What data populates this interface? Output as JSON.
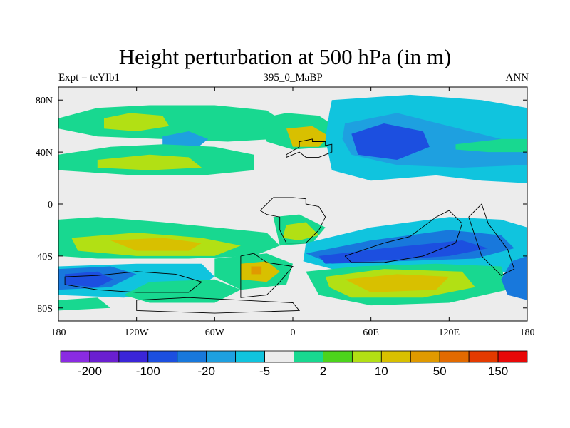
{
  "header": {
    "title": "Height perturbation at 500 hPa (in m)",
    "left": "Expt = teYIb1",
    "center": "395_0_MaBP",
    "right": "ANN"
  },
  "map": {
    "lat_labels": [
      {
        "value": 80,
        "text": "80N"
      },
      {
        "value": 40,
        "text": "40N"
      },
      {
        "value": 0,
        "text": "0"
      },
      {
        "value": -40,
        "text": "40S"
      },
      {
        "value": -80,
        "text": "80S"
      }
    ],
    "lon_labels": [
      {
        "value": -180,
        "text": "180"
      },
      {
        "value": -120,
        "text": "120W"
      },
      {
        "value": -60,
        "text": "60W"
      },
      {
        "value": 0,
        "text": "0"
      },
      {
        "value": 60,
        "text": "60E"
      },
      {
        "value": 120,
        "text": "120E"
      },
      {
        "value": 180,
        "text": "180"
      }
    ],
    "lat_range": [
      -90,
      90
    ],
    "lon_range": [
      -180,
      180
    ]
  },
  "colorbar": {
    "colors": [
      "#8a2be2",
      "#6a1fd0",
      "#3a25d8",
      "#1c4fe0",
      "#1878dc",
      "#1ea0e0",
      "#10c4de",
      "#ececec",
      "#18d890",
      "#4cd41c",
      "#b2e014",
      "#d8c000",
      "#e09a00",
      "#e26a00",
      "#e43a00",
      "#e80808"
    ],
    "labels": [
      {
        "after": 1,
        "text": "-200"
      },
      {
        "after": 3,
        "text": "-100"
      },
      {
        "after": 5,
        "text": "-20"
      },
      {
        "after": 7,
        "text": "-5"
      },
      {
        "after": 9,
        "text": "2"
      },
      {
        "after": 11,
        "text": "10"
      },
      {
        "after": 13,
        "text": "50"
      },
      {
        "after": 15,
        "text": "150"
      }
    ]
  },
  "field": {
    "colors": {
      "neutral": "#ececec",
      "cyan": "#10c4de",
      "lightblue": "#1ea0e0",
      "blue": "#1878dc",
      "darkblue": "#1c4fe0",
      "green": "#18d890",
      "lime": "#4cd41c",
      "yellowgreen": "#b2e014",
      "gold": "#d8c000",
      "orange": "#e09a00",
      "darkorange": "#e26a00"
    },
    "regions": [
      {
        "color": "green",
        "pts": [
          [
            -180,
            66
          ],
          [
            -150,
            74
          ],
          [
            -110,
            76
          ],
          [
            -60,
            76
          ],
          [
            -20,
            72
          ],
          [
            -5,
            62
          ],
          [
            -15,
            50
          ],
          [
            -50,
            48
          ],
          [
            -100,
            50
          ],
          [
            -150,
            52
          ],
          [
            -180,
            58
          ]
        ]
      },
      {
        "color": "yellowgreen",
        "pts": [
          [
            -145,
            66
          ],
          [
            -125,
            70
          ],
          [
            -100,
            68
          ],
          [
            -95,
            60
          ],
          [
            -120,
            56
          ],
          [
            -145,
            58
          ]
        ]
      },
      {
        "color": "lightblue",
        "pts": [
          [
            -100,
            52
          ],
          [
            -80,
            56
          ],
          [
            -65,
            50
          ],
          [
            -75,
            42
          ],
          [
            -100,
            44
          ]
        ]
      },
      {
        "color": "green",
        "pts": [
          [
            -180,
            38
          ],
          [
            -140,
            44
          ],
          [
            -100,
            46
          ],
          [
            -60,
            44
          ],
          [
            -30,
            38
          ],
          [
            -30,
            26
          ],
          [
            -70,
            22
          ],
          [
            -120,
            22
          ],
          [
            -180,
            26
          ]
        ]
      },
      {
        "color": "yellowgreen",
        "pts": [
          [
            -150,
            34
          ],
          [
            -110,
            38
          ],
          [
            -80,
            36
          ],
          [
            -70,
            28
          ],
          [
            -110,
            26
          ],
          [
            -150,
            28
          ]
        ]
      },
      {
        "color": "green",
        "pts": [
          [
            -25,
            66
          ],
          [
            -5,
            70
          ],
          [
            20,
            68
          ],
          [
            35,
            58
          ],
          [
            30,
            44
          ],
          [
            0,
            42
          ],
          [
            -20,
            48
          ]
        ]
      },
      {
        "color": "gold",
        "pts": [
          [
            -5,
            58
          ],
          [
            15,
            60
          ],
          [
            28,
            52
          ],
          [
            20,
            44
          ],
          [
            0,
            44
          ]
        ]
      },
      {
        "color": "cyan",
        "pts": [
          [
            30,
            80
          ],
          [
            90,
            84
          ],
          [
            145,
            80
          ],
          [
            180,
            74
          ],
          [
            180,
            16
          ],
          [
            145,
            18
          ],
          [
            110,
            22
          ],
          [
            60,
            18
          ],
          [
            30,
            26
          ],
          [
            25,
            50
          ],
          [
            28,
            70
          ]
        ]
      },
      {
        "color": "lightblue",
        "pts": [
          [
            40,
            62
          ],
          [
            80,
            70
          ],
          [
            120,
            60
          ],
          [
            160,
            50
          ],
          [
            180,
            48
          ],
          [
            180,
            30
          ],
          [
            130,
            28
          ],
          [
            80,
            30
          ],
          [
            45,
            38
          ],
          [
            38,
            50
          ]
        ]
      },
      {
        "color": "darkblue",
        "pts": [
          [
            45,
            54
          ],
          [
            70,
            62
          ],
          [
            100,
            56
          ],
          [
            105,
            44
          ],
          [
            80,
            34
          ],
          [
            50,
            38
          ]
        ]
      },
      {
        "color": "green",
        "pts": [
          [
            125,
            46
          ],
          [
            160,
            50
          ],
          [
            180,
            50
          ],
          [
            180,
            40
          ],
          [
            150,
            40
          ],
          [
            125,
            42
          ]
        ]
      },
      {
        "color": "green",
        "pts": [
          [
            -180,
            -12
          ],
          [
            -150,
            -10
          ],
          [
            -100,
            -14
          ],
          [
            -60,
            -18
          ],
          [
            -20,
            -22
          ],
          [
            -10,
            -32
          ],
          [
            -30,
            -40
          ],
          [
            -80,
            -42
          ],
          [
            -150,
            -42
          ],
          [
            -180,
            -40
          ]
        ]
      },
      {
        "color": "yellowgreen",
        "pts": [
          [
            -170,
            -26
          ],
          [
            -120,
            -22
          ],
          [
            -70,
            -26
          ],
          [
            -40,
            -32
          ],
          [
            -60,
            -40
          ],
          [
            -120,
            -40
          ],
          [
            -165,
            -36
          ]
        ]
      },
      {
        "color": "gold",
        "pts": [
          [
            -140,
            -28
          ],
          [
            -100,
            -26
          ],
          [
            -70,
            -30
          ],
          [
            -80,
            -36
          ],
          [
            -120,
            -36
          ]
        ]
      },
      {
        "color": "green",
        "pts": [
          [
            -15,
            -10
          ],
          [
            5,
            -8
          ],
          [
            25,
            -18
          ],
          [
            15,
            -30
          ],
          [
            -10,
            -32
          ]
        ]
      },
      {
        "color": "yellowgreen",
        "pts": [
          [
            -5,
            -16
          ],
          [
            10,
            -14
          ],
          [
            20,
            -24
          ],
          [
            5,
            -28
          ],
          [
            -8,
            -26
          ]
        ]
      },
      {
        "color": "green",
        "pts": [
          [
            -60,
            -42
          ],
          [
            -20,
            -38
          ],
          [
            0,
            -46
          ],
          [
            -5,
            -62
          ],
          [
            -40,
            -66
          ],
          [
            -60,
            -56
          ]
        ]
      },
      {
        "color": "gold",
        "pts": [
          [
            -40,
            -46
          ],
          [
            -20,
            -44
          ],
          [
            -10,
            -52
          ],
          [
            -20,
            -60
          ],
          [
            -40,
            -58
          ]
        ]
      },
      {
        "color": "orange",
        "pts": [
          [
            -32,
            -48
          ],
          [
            -24,
            -48
          ],
          [
            -24,
            -54
          ],
          [
            -32,
            -54
          ]
        ]
      },
      {
        "color": "cyan",
        "pts": [
          [
            10,
            -30
          ],
          [
            60,
            -18
          ],
          [
            120,
            -10
          ],
          [
            160,
            -12
          ],
          [
            180,
            -18
          ],
          [
            180,
            -54
          ],
          [
            140,
            -50
          ],
          [
            80,
            -52
          ],
          [
            30,
            -50
          ],
          [
            8,
            -44
          ]
        ]
      },
      {
        "color": "blue",
        "pts": [
          [
            10,
            -38
          ],
          [
            60,
            -28
          ],
          [
            120,
            -20
          ],
          [
            160,
            -24
          ],
          [
            170,
            -34
          ],
          [
            140,
            -42
          ],
          [
            80,
            -44
          ],
          [
            30,
            -46
          ]
        ]
      },
      {
        "color": "darkblue",
        "pts": [
          [
            20,
            -40
          ],
          [
            70,
            -34
          ],
          [
            130,
            -28
          ],
          [
            150,
            -34
          ],
          [
            120,
            -40
          ],
          [
            60,
            -44
          ],
          [
            25,
            -46
          ]
        ]
      },
      {
        "color": "green",
        "pts": [
          [
            10,
            -52
          ],
          [
            50,
            -48
          ],
          [
            110,
            -46
          ],
          [
            160,
            -48
          ],
          [
            165,
            -66
          ],
          [
            120,
            -76
          ],
          [
            60,
            -78
          ],
          [
            20,
            -70
          ]
        ]
      },
      {
        "color": "yellowgreen",
        "pts": [
          [
            25,
            -56
          ],
          [
            70,
            -50
          ],
          [
            130,
            -52
          ],
          [
            140,
            -64
          ],
          [
            100,
            -72
          ],
          [
            45,
            -72
          ],
          [
            28,
            -64
          ]
        ]
      },
      {
        "color": "gold",
        "pts": [
          [
            40,
            -58
          ],
          [
            80,
            -54
          ],
          [
            120,
            -56
          ],
          [
            110,
            -66
          ],
          [
            60,
            -68
          ]
        ]
      },
      {
        "color": "cyan",
        "pts": [
          [
            -180,
            -48
          ],
          [
            -120,
            -46
          ],
          [
            -70,
            -46
          ],
          [
            -60,
            -56
          ],
          [
            -80,
            -68
          ],
          [
            -130,
            -72
          ],
          [
            -180,
            -70
          ]
        ]
      },
      {
        "color": "blue",
        "pts": [
          [
            -180,
            -50
          ],
          [
            -140,
            -48
          ],
          [
            -120,
            -54
          ],
          [
            -140,
            -64
          ],
          [
            -180,
            -66
          ]
        ]
      },
      {
        "color": "darkblue",
        "pts": [
          [
            -175,
            -54
          ],
          [
            -150,
            -52
          ],
          [
            -138,
            -58
          ],
          [
            -150,
            -64
          ],
          [
            -175,
            -62
          ]
        ]
      },
      {
        "color": "green",
        "pts": [
          [
            -110,
            -60
          ],
          [
            -60,
            -58
          ],
          [
            -40,
            -66
          ],
          [
            -60,
            -76
          ],
          [
            -110,
            -76
          ],
          [
            -130,
            -70
          ]
        ]
      },
      {
        "color": "blue",
        "pts": [
          [
            168,
            -44
          ],
          [
            180,
            -40
          ],
          [
            180,
            -74
          ],
          [
            165,
            -70
          ],
          [
            160,
            -58
          ]
        ]
      },
      {
        "color": "green",
        "pts": [
          [
            -180,
            -74
          ],
          [
            -150,
            -72
          ],
          [
            -140,
            -80
          ],
          [
            -180,
            -82
          ]
        ]
      }
    ],
    "coasts": [
      [
        [
          -5,
          38
        ],
        [
          5,
          44
        ],
        [
          5,
          48
        ],
        [
          15,
          50
        ],
        [
          15,
          48
        ],
        [
          25,
          48
        ],
        [
          25,
          45
        ],
        [
          30,
          46
        ],
        [
          30,
          40
        ],
        [
          25,
          38
        ],
        [
          20,
          36
        ],
        [
          10,
          36
        ],
        [
          5,
          40
        ],
        [
          -5,
          36
        ]
      ],
      [
        [
          -25,
          -5
        ],
        [
          -20,
          0
        ],
        [
          -15,
          5
        ],
        [
          0,
          5
        ],
        [
          10,
          4
        ],
        [
          10,
          0
        ],
        [
          20,
          -2
        ],
        [
          25,
          -10
        ],
        [
          20,
          -20
        ],
        [
          10,
          -30
        ],
        [
          -5,
          -30
        ],
        [
          -10,
          -20
        ],
        [
          -10,
          -10
        ],
        [
          -20,
          -8
        ]
      ],
      [
        [
          -40,
          -40
        ],
        [
          -30,
          -38
        ],
        [
          -20,
          -45
        ],
        [
          0,
          -48
        ],
        [
          -10,
          -60
        ],
        [
          -20,
          -70
        ],
        [
          -40,
          -72
        ],
        [
          -40,
          -60
        ]
      ],
      [
        [
          40,
          -40
        ],
        [
          70,
          -30
        ],
        [
          90,
          -25
        ],
        [
          110,
          -10
        ],
        [
          120,
          -5
        ],
        [
          130,
          -15
        ],
        [
          125,
          -30
        ],
        [
          100,
          -40
        ],
        [
          70,
          -45
        ],
        [
          45,
          -45
        ]
      ],
      [
        [
          135,
          -10
        ],
        [
          145,
          0
        ],
        [
          150,
          -15
        ],
        [
          165,
          -35
        ],
        [
          170,
          -50
        ],
        [
          160,
          -55
        ],
        [
          145,
          -40
        ],
        [
          140,
          -25
        ]
      ],
      [
        [
          -150,
          -55
        ],
        [
          -120,
          -52
        ],
        [
          -90,
          -54
        ],
        [
          -70,
          -60
        ],
        [
          -80,
          -68
        ],
        [
          -120,
          -68
        ],
        [
          -150,
          -66
        ],
        [
          -175,
          -62
        ],
        [
          -175,
          -56
        ]
      ],
      [
        [
          -120,
          -74
        ],
        [
          -80,
          -72
        ],
        [
          -40,
          -74
        ],
        [
          0,
          -76
        ],
        [
          5,
          -82
        ],
        [
          -60,
          -84
        ],
        [
          -120,
          -82
        ]
      ]
    ]
  }
}
